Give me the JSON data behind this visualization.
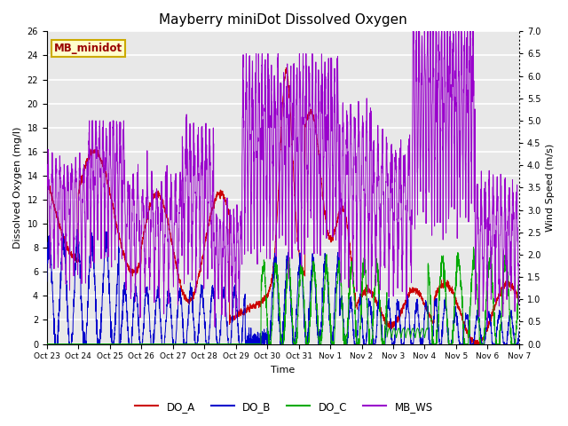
{
  "title": "Mayberry miniDot Dissolved Oxygen",
  "ylabel_left": "Dissolved Oxygen (mg/l)",
  "ylabel_right": "Wind Speed (m/s)",
  "xlabel": "Time",
  "ylim_left": [
    0,
    26
  ],
  "ylim_right": [
    0.0,
    7.0
  ],
  "yticks_left": [
    0,
    2,
    4,
    6,
    8,
    10,
    12,
    14,
    16,
    18,
    20,
    22,
    24,
    26
  ],
  "yticks_right": [
    0.0,
    0.5,
    1.0,
    1.5,
    2.0,
    2.5,
    3.0,
    3.5,
    4.0,
    4.5,
    5.0,
    5.5,
    6.0,
    6.5,
    7.0
  ],
  "xtick_labels": [
    "Oct 23",
    "Oct 24",
    "Oct 25",
    "Oct 26",
    "Oct 27",
    "Oct 28",
    "Oct 29",
    "Oct 30",
    "Oct 31",
    "Nov 1",
    "Nov 2",
    "Nov 3",
    "Nov 4",
    "Nov 5",
    "Nov 6",
    "Nov 7"
  ],
  "colors": {
    "DO_A": "#cc0000",
    "DO_B": "#0000cc",
    "DO_C": "#00aa00",
    "MB_WS": "#9900cc"
  },
  "legend_box_facecolor": "#ffffcc",
  "legend_box_edgecolor": "#ccaa00",
  "legend_box_textcolor": "#990000",
  "legend_box_label": "MB_minidot",
  "bg_band_light": "#e8e8e8",
  "bg_band_white": "#f5f5f5",
  "grid_color": "#cccccc",
  "right_axis_dotted": true
}
